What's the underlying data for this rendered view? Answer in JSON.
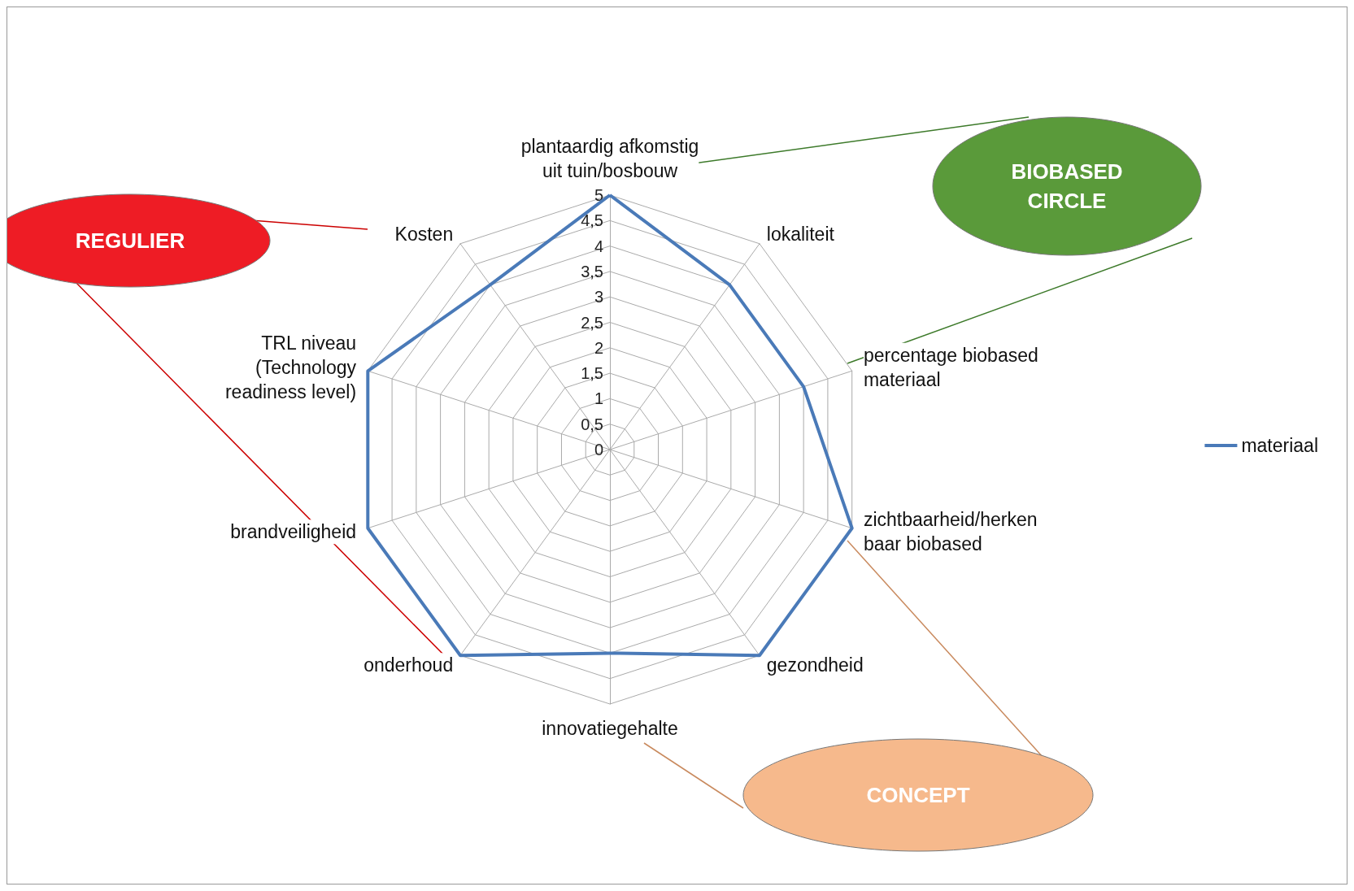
{
  "chart_data": {
    "type": "radar",
    "categories": [
      "plantaardig afkomstig\nuit tuin/bosbouw",
      "lokaliteit",
      "percentage biobased\nmateriaal",
      "zichtbaarheid/herken\nbaar biobased",
      "gezondheid",
      "innovatiegehalte",
      "onderhoud",
      "brandveiligheid",
      "TRL niveau\n(Technology\nreadiness level)",
      "Kosten"
    ],
    "series": [
      {
        "name": "materiaal",
        "color": "#4a7ab8",
        "values": [
          5,
          4,
          4,
          5,
          5,
          4,
          5,
          5,
          5,
          4
        ]
      }
    ],
    "ylim": [
      0,
      5
    ],
    "yticks": [
      0,
      {
        "value": 0.5,
        "label": "0,5"
      },
      1,
      {
        "value": 1.5,
        "label": "1,5"
      },
      2,
      {
        "value": 2.5,
        "label": "2,5"
      },
      3,
      {
        "value": 3.5,
        "label": "3,5"
      },
      4,
      {
        "value": 4.5,
        "label": "4,5"
      },
      5
    ],
    "legend": "right",
    "grid": true,
    "annotations": [
      "REGULIER",
      "BIOBASED\nCIRCLE",
      "CONCEPT"
    ]
  }
}
